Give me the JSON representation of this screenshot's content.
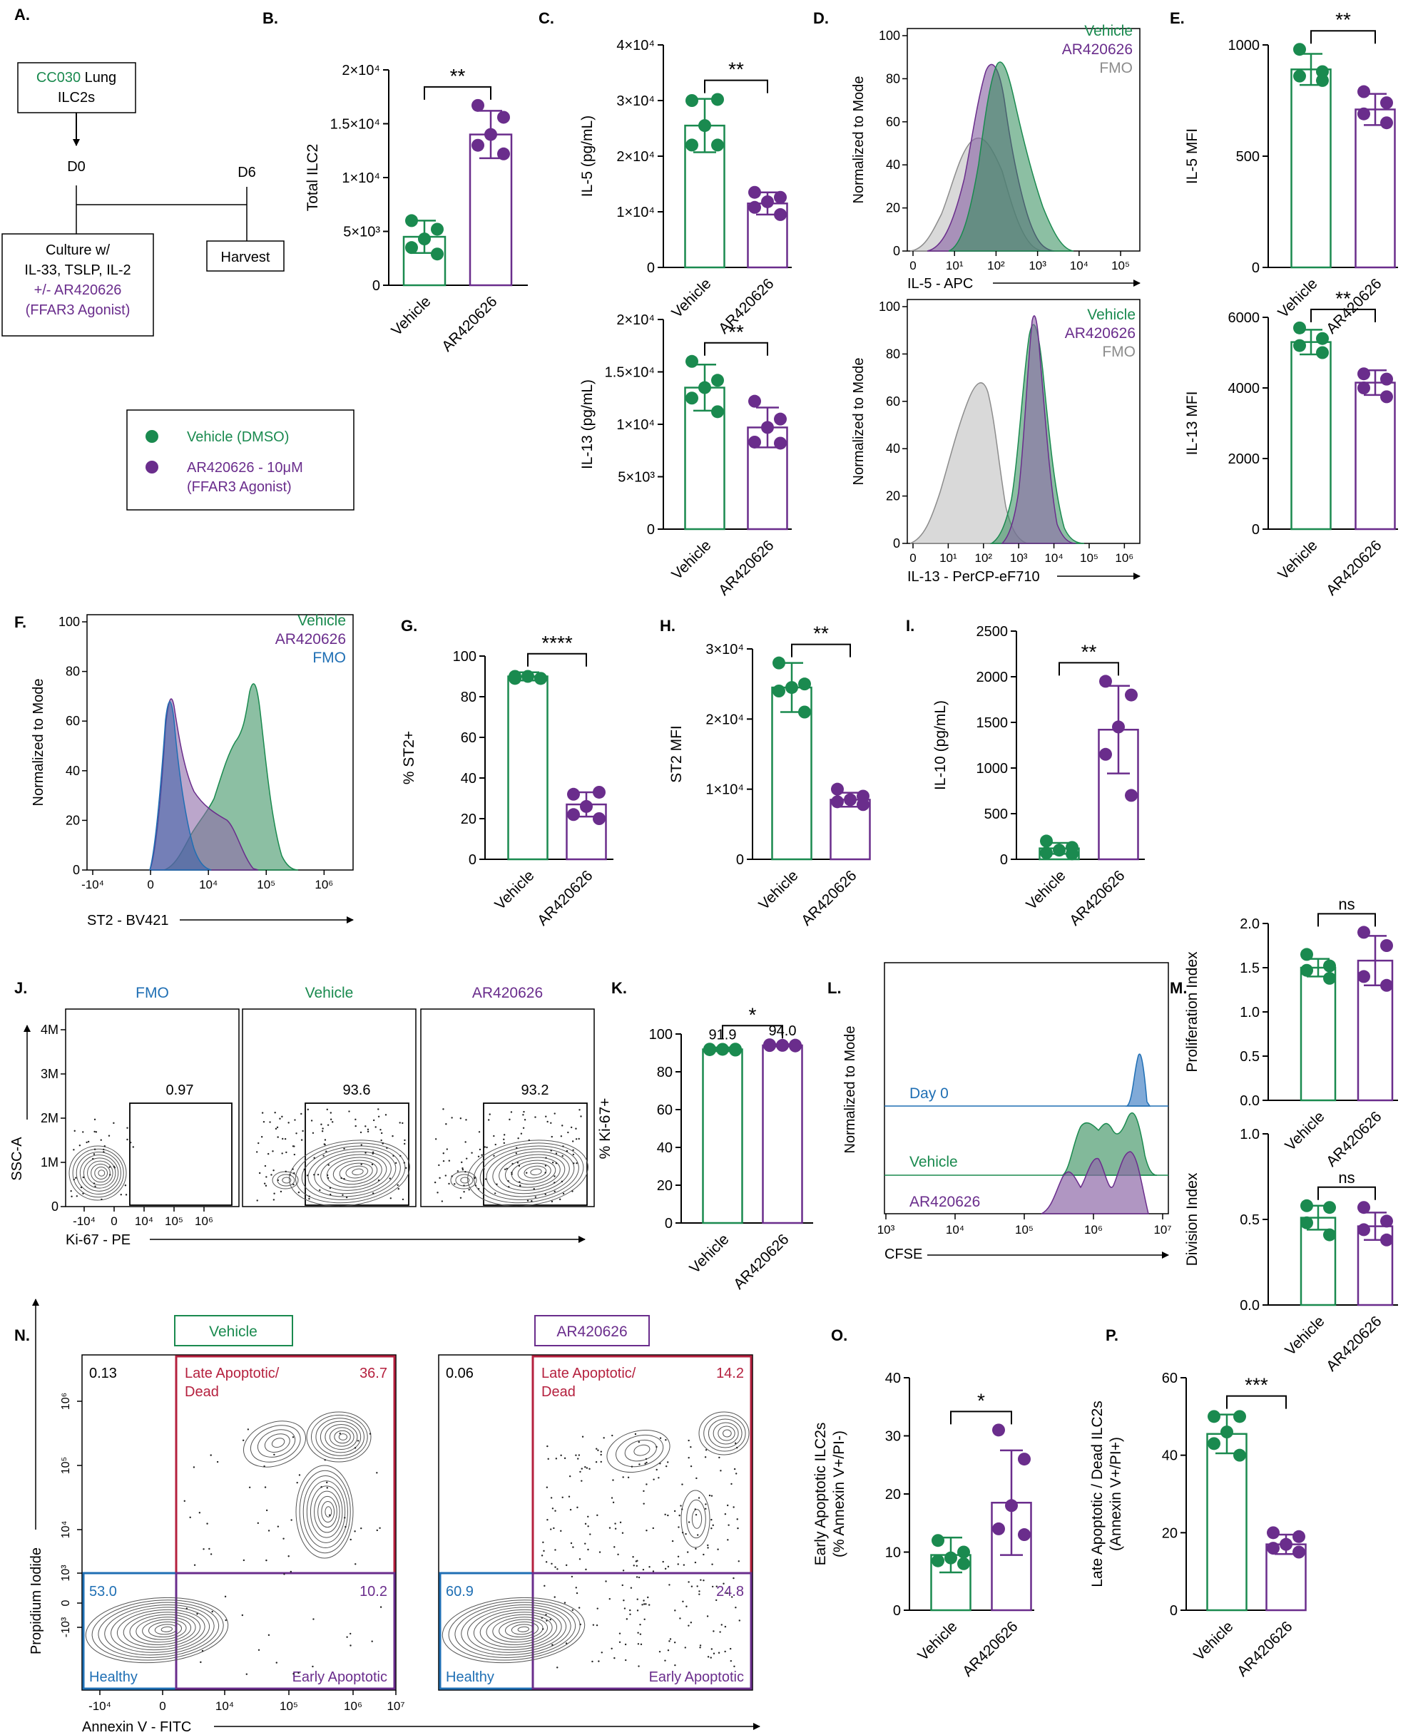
{
  "colors": {
    "vehicle": "#1a8a4f",
    "ar": "#6a2d8c",
    "fmo_gray": "#8c8c8c",
    "fmo_blue": "#1f6fb4",
    "axis": "#000000",
    "red_gate": "#b5203e",
    "blue_gate": "#1f6fb4",
    "purple_gate": "#6a2d8c"
  },
  "panel_labels": {
    "A": "A.",
    "B": "B.",
    "C": "C.",
    "D": "D.",
    "E": "E.",
    "F": "F.",
    "G": "G.",
    "H": "H.",
    "I": "I.",
    "J": "J.",
    "K": "K.",
    "L": "L.",
    "M": "M.",
    "N": "N.",
    "O": "O.",
    "P": "P."
  },
  "schematic": {
    "box1_line1_green": "CC030",
    "box1_line1_rest": " Lung",
    "box1_line2": "ILC2s",
    "d0": "D0",
    "d6": "D6",
    "culture_lines": [
      "Culture w/",
      "IL-33, TSLP, IL-2"
    ],
    "culture_purple": [
      "+/- AR420626",
      "(FFAR3 Agonist)"
    ],
    "harvest": "Harvest"
  },
  "legend": {
    "vehicle": "Vehicle (DMSO)",
    "ar": [
      "AR420626 - 10μM",
      "(FFAR3 Agonist)"
    ]
  },
  "hist_legend": {
    "vehicle": "Vehicle",
    "ar": "AR420626",
    "fmo": "FMO"
  },
  "hist_axes": {
    "ylabel": "Normalized to Mode",
    "yticks": [
      "0",
      "20",
      "40",
      "60",
      "80",
      "100"
    ],
    "D_top_x": "IL-5 - APC",
    "D_top_ticks": [
      "0",
      "10¹",
      "10²",
      "10³",
      "10⁴",
      "10⁵"
    ],
    "D_bot_x": "IL-13 - PerCP-eF710",
    "D_bot_ticks": [
      "0",
      "10¹",
      "10²",
      "10³",
      "10⁴",
      "10⁵",
      "10⁶"
    ],
    "F_x": "ST2 - BV421",
    "F_ticks": [
      "-10⁴",
      "0",
      "10⁴",
      "10⁵",
      "10⁶"
    ]
  },
  "flow_J": {
    "titles": [
      "FMO",
      "Vehicle",
      "AR420626"
    ],
    "gate_values": [
      "0.97",
      "93.6",
      "93.2"
    ],
    "ylabel": "SSC-A",
    "yticks": [
      "0",
      "1M",
      "2M",
      "3M",
      "4M"
    ],
    "xlabel": "Ki-67 - PE",
    "xticks": [
      "-10⁴",
      "0",
      "10⁴",
      "10⁵",
      "10⁶"
    ]
  },
  "cfse_L": {
    "ylabel": "Normalized to Mode",
    "xlabel": "CFSE",
    "xticks": [
      "10³",
      "10⁴",
      "10⁵",
      "10⁶",
      "10⁷"
    ],
    "rows": [
      "Day 0",
      "Vehicle",
      "AR420626"
    ]
  },
  "flow_N": {
    "titles": [
      "Vehicle",
      "AR420626"
    ],
    "q1": [
      "0.13",
      "0.06"
    ],
    "late": [
      "36.7",
      "14.2"
    ],
    "healthy": [
      "53.0",
      "60.9"
    ],
    "early": [
      "10.2",
      "24.8"
    ],
    "late_label": [
      "Late Apoptotic/",
      "Dead"
    ],
    "healthy_label": "Healthy",
    "early_label": "Early Apoptotic",
    "ylabel": "Propidium Iodide",
    "xlabel": "Annexin V - FITC",
    "yticks": [
      "10⁶",
      "10⁵",
      "10⁴",
      "10³",
      "0",
      "-10³"
    ],
    "xticks": [
      "-10⁴",
      "0",
      "10⁴",
      "10⁵",
      "10⁶",
      "10⁷"
    ]
  },
  "chart_data": [
    {
      "id": "B",
      "type": "bar",
      "categories": [
        "Vehicle",
        "AR420626"
      ],
      "ylabel": "Total ILC2",
      "ylim": [
        0,
        20000
      ],
      "yticks": [
        "0",
        "5×10³",
        "1×10⁴",
        "1.5×10⁴",
        "2×10⁴"
      ],
      "values": [
        4500,
        14000
      ],
      "errors": [
        1500,
        2200
      ],
      "points": [
        [
          6000,
          5200,
          4300,
          3500,
          2900
        ],
        [
          16700,
          15600,
          14000,
          13000,
          12200
        ]
      ],
      "sig": "**"
    },
    {
      "id": "C1",
      "type": "bar",
      "categories": [
        "Vehicle",
        "AR420626"
      ],
      "ylabel": "IL-5 (pg/mL)",
      "ylim": [
        0,
        40000
      ],
      "yticks": [
        "0",
        "1×10⁴",
        "2×10⁴",
        "3×10⁴",
        "4×10⁴"
      ],
      "values": [
        25500,
        11500
      ],
      "errors": [
        4800,
        2000
      ],
      "points": [
        [
          30000,
          30200,
          25500,
          22000,
          22000
        ],
        [
          13500,
          12600,
          11800,
          10800,
          9500
        ]
      ],
      "sig": "**"
    },
    {
      "id": "C2",
      "type": "bar",
      "categories": [
        "Vehicle",
        "AR420626"
      ],
      "ylabel": "IL-13 (pg/mL)",
      "ylim": [
        0,
        20000
      ],
      "yticks": [
        "0",
        "5×10³",
        "1×10⁴",
        "1.5×10⁴",
        "2×10⁴"
      ],
      "values": [
        13500,
        9700
      ],
      "errors": [
        2200,
        1900
      ],
      "points": [
        [
          16000,
          14200,
          13500,
          12500,
          11200
        ],
        [
          12200,
          10500,
          9700,
          8300,
          8200
        ]
      ],
      "sig": "**"
    },
    {
      "id": "E1",
      "type": "bar",
      "categories": [
        "Vehicle",
        "AR420626"
      ],
      "ylabel": "IL-5 MFI",
      "ylim": [
        0,
        1000
      ],
      "yticks": [
        "0",
        "500",
        "1000"
      ],
      "values": [
        890,
        710
      ],
      "errors": [
        70,
        70
      ],
      "points": [
        [
          980,
          880,
          860,
          840
        ],
        [
          790,
          740,
          690,
          650
        ]
      ],
      "sig": "**"
    },
    {
      "id": "E2",
      "type": "bar",
      "categories": [
        "Vehicle",
        "AR420626"
      ],
      "ylabel": "IL-13 MFI",
      "ylim": [
        0,
        6000
      ],
      "yticks": [
        "0",
        "2000",
        "4000",
        "6000"
      ],
      "values": [
        5300,
        4150
      ],
      "errors": [
        350,
        350
      ],
      "points": [
        [
          5700,
          5400,
          5200,
          5000
        ],
        [
          4400,
          4250,
          4000,
          3750
        ]
      ],
      "sig": "**"
    },
    {
      "id": "G",
      "type": "bar",
      "categories": [
        "Vehicle",
        "AR420626"
      ],
      "ylabel": "% ST2+",
      "ylim": [
        0,
        100
      ],
      "yticks": [
        "0",
        "20",
        "40",
        "60",
        "80",
        "100"
      ],
      "values": [
        90,
        27
      ],
      "errors": [
        2,
        6
      ],
      "points": [
        [
          90,
          89,
          90,
          89,
          89
        ],
        [
          32,
          33,
          26,
          22,
          20
        ]
      ],
      "sig": "****"
    },
    {
      "id": "H",
      "type": "bar",
      "categories": [
        "Vehicle",
        "AR420626"
      ],
      "ylabel": "ST2 MFI",
      "ylim": [
        0,
        30000
      ],
      "yticks": [
        "0",
        "1×10⁴",
        "2×10⁴",
        "3×10⁴"
      ],
      "values": [
        24500,
        8500
      ],
      "errors": [
        3500,
        1000
      ],
      "points": [
        [
          28000,
          25000,
          24500,
          24000,
          21000
        ],
        [
          10000,
          9000,
          8500,
          8200,
          7800
        ]
      ],
      "sig": "**"
    },
    {
      "id": "I",
      "type": "bar",
      "categories": [
        "Vehicle",
        "AR420626"
      ],
      "ylabel": "IL-10 (pg/mL)",
      "ylim": [
        0,
        2500
      ],
      "yticks": [
        "0",
        "500",
        "1000",
        "1500",
        "2000",
        "2500"
      ],
      "values": [
        120,
        1420
      ],
      "errors": [
        60,
        480
      ],
      "points": [
        [
          200,
          130,
          100,
          70,
          60
        ],
        [
          1950,
          1800,
          1450,
          1150,
          700
        ]
      ],
      "sig": "**"
    },
    {
      "id": "K",
      "type": "bar",
      "categories": [
        "Vehicle",
        "AR420626"
      ],
      "ylabel": "% Ki-67+",
      "ylim": [
        0,
        100
      ],
      "yticks": [
        "0",
        "20",
        "40",
        "60",
        "80",
        "100"
      ],
      "values": [
        91.9,
        94.0
      ],
      "errors": [
        1.0,
        0.6
      ],
      "points": [
        [
          92,
          92,
          91.9,
          91.7,
          91.5
        ],
        [
          94.3,
          94.1,
          94,
          93.9,
          93.7
        ]
      ],
      "sig": "*",
      "bar_labels": [
        "91.9",
        "94.0"
      ]
    },
    {
      "id": "M1",
      "type": "bar",
      "categories": [
        "Vehicle",
        "AR420626"
      ],
      "ylabel": "Proliferation Index",
      "ylim": [
        0,
        2.0
      ],
      "yticks": [
        "0.0",
        "0.5",
        "1.0",
        "1.5",
        "2.0"
      ],
      "values": [
        1.5,
        1.58
      ],
      "errors": [
        0.1,
        0.28
      ],
      "points": [
        [
          1.65,
          1.52,
          1.47,
          1.38
        ],
        [
          1.9,
          1.75,
          1.4,
          1.3
        ]
      ],
      "sig": "ns"
    },
    {
      "id": "M2",
      "type": "bar",
      "categories": [
        "Vehicle",
        "AR420626"
      ],
      "ylabel": "Division Index",
      "ylim": [
        0,
        1.0
      ],
      "yticks": [
        "0.0",
        "0.5",
        "1.0"
      ],
      "values": [
        0.51,
        0.46
      ],
      "errors": [
        0.07,
        0.08
      ],
      "points": [
        [
          0.58,
          0.57,
          0.48,
          0.41
        ],
        [
          0.57,
          0.49,
          0.44,
          0.38
        ]
      ],
      "sig": "ns"
    },
    {
      "id": "O",
      "type": "bar",
      "categories": [
        "Vehicle",
        "AR420626"
      ],
      "ylabel": [
        "Early Apoptotic ILC2s",
        "(% Annexin V+/PI-)"
      ],
      "ylim": [
        0,
        40
      ],
      "yticks": [
        "0",
        "10",
        "20",
        "30",
        "40"
      ],
      "values": [
        9.5,
        18.5
      ],
      "errors": [
        3.0,
        9.0
      ],
      "points": [
        [
          12,
          10,
          9,
          8.5,
          8
        ],
        [
          31,
          26,
          18,
          14,
          13
        ]
      ],
      "sig": "*"
    },
    {
      "id": "P",
      "type": "bar",
      "categories": [
        "Vehicle",
        "AR420626"
      ],
      "ylabel": [
        "Late Apoptotic / Dead ILC2s",
        "(Annexin V+/PI+)"
      ],
      "ylim": [
        0,
        60
      ],
      "yticks": [
        "0",
        "20",
        "40",
        "60"
      ],
      "values": [
        45.5,
        17.0
      ],
      "errors": [
        5.0,
        2.5
      ],
      "points": [
        [
          50,
          50,
          46,
          43,
          40
        ],
        [
          20,
          19,
          17,
          16,
          15
        ]
      ],
      "sig": "***"
    }
  ]
}
